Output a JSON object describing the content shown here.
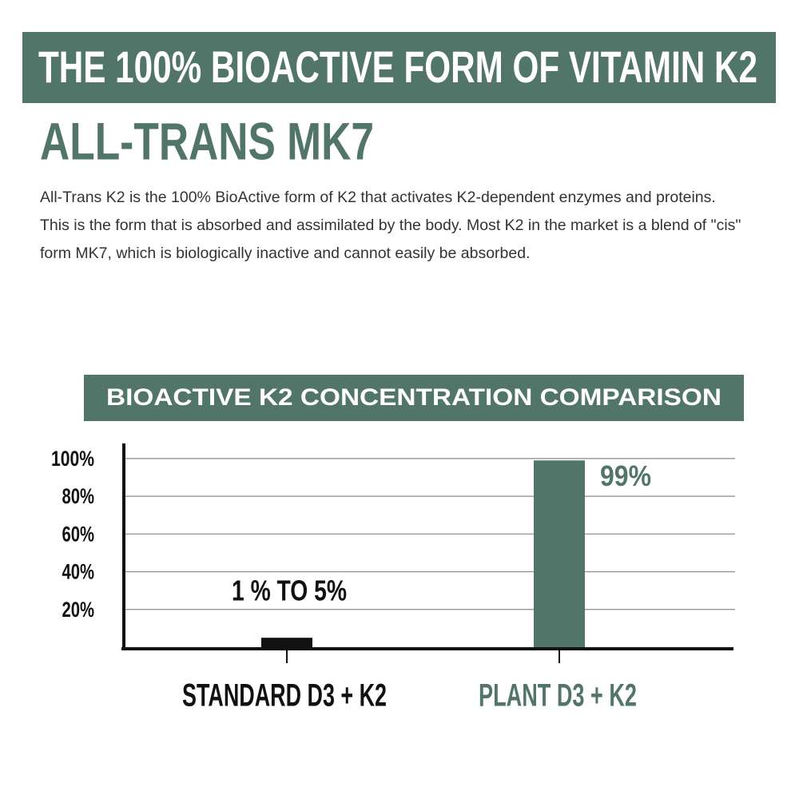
{
  "header": {
    "title": "THE 100% BIOACTIVE FORM OF VITAMIN K2",
    "heading": "ALL-TRANS MK7",
    "paragraph": "All-Trans K2 is the 100% BioActive form of K2 that activates K2-dependent enzymes and proteins. This is the form that is absorbed and assimilated by the body. Most K2 in the market is a blend of \"cis\" form MK7, which is biologically inactive and cannot easily be absorbed."
  },
  "chart_data": {
    "type": "bar",
    "title": "BIOACTIVE K2 CONCENTRATION COMPARISON",
    "categories": [
      "STANDARD D3 + K2",
      "PLANT D3 + K2"
    ],
    "values": [
      5,
      99
    ],
    "value_labels": [
      "1 % TO 5%",
      "99%"
    ],
    "colors": [
      "#111111",
      "#52756a"
    ],
    "ylim": [
      0,
      108
    ],
    "yticks": [
      {
        "value": 20,
        "label": "20%"
      },
      {
        "value": 40,
        "label": "40%"
      },
      {
        "value": 60,
        "label": "60%"
      },
      {
        "value": 80,
        "label": "80%"
      },
      {
        "value": 100,
        "label": "100%"
      }
    ],
    "grid": true
  }
}
